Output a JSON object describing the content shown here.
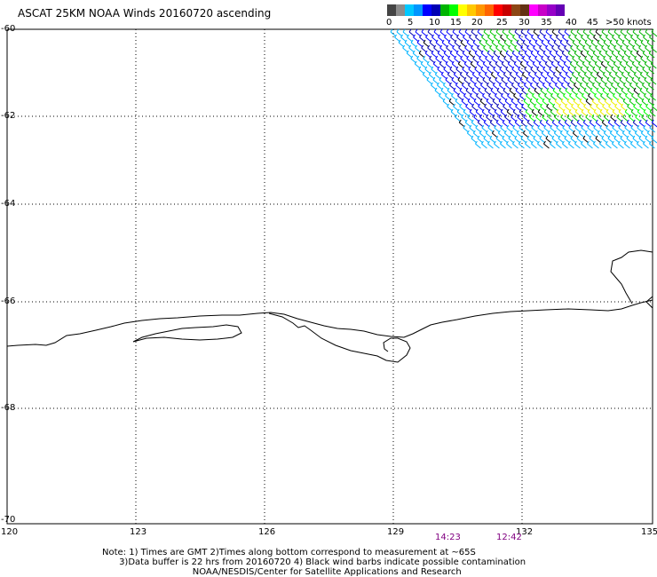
{
  "title": "ASCAT 25KM NOAA Winds 20160720 ascending",
  "legend": {
    "colors": [
      "#444444",
      "#8c8c8c",
      "#00c8ff",
      "#0096ff",
      "#0000ff",
      "#0000b4",
      "#00b400",
      "#00ff00",
      "#ffff00",
      "#ffc800",
      "#ff9600",
      "#ff6400",
      "#ff0000",
      "#c80000",
      "#8c4614",
      "#643214",
      "#ff00ff",
      "#c800c8",
      "#9600c8",
      "#6400b4"
    ],
    "labels": [
      "0",
      "5",
      "10",
      "15",
      "20",
      "25",
      "30",
      "35",
      "40",
      "45",
      ">50 knots"
    ]
  },
  "axes": {
    "lat_labels": [
      "-60",
      "-62",
      "-64",
      "-66",
      "-68",
      "-70"
    ],
    "lon_labels": [
      "120",
      "123",
      "126",
      "129",
      "132",
      "135"
    ]
  },
  "times": [
    "14:23",
    "12:42"
  ],
  "notes": [
    "Note: 1) Times are GMT 2)Times along bottom correspond to measurement at ~65S",
    "      3)Data buffer is 22 hrs from 20160720 4) Black wind barbs indicate possible contamination",
    "                                NOAA/NESDIS/Center for Satellite Applications and Research"
  ]
}
